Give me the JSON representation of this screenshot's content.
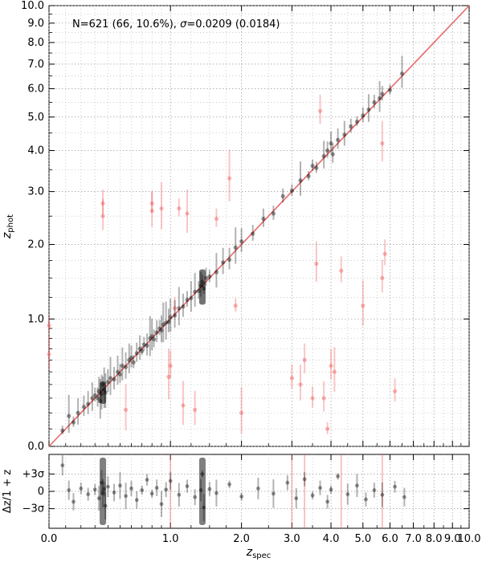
{
  "chart_data": [
    {
      "type": "scatter",
      "panel": "main",
      "title": "",
      "annotation": {
        "prefix": "N=621 (66, 10.6%), ",
        "sigma_symbol": "σ",
        "suffix": "=0.0209 (0.0184)"
      },
      "xlabel": {
        "base": "z",
        "sub": "spec"
      },
      "ylabel": {
        "base": "z",
        "sub": "phot"
      },
      "scale": "log(1+z)",
      "xlim": [
        0,
        10
      ],
      "ylim": [
        0,
        10
      ],
      "grid": true,
      "legend": "none",
      "x_tick_labels": [
        {
          "v": 0,
          "t": "0.0"
        },
        {
          "v": 1,
          "t": "1.0"
        },
        {
          "v": 2,
          "t": "2.0"
        },
        {
          "v": 3,
          "t": "3.0"
        },
        {
          "v": 4,
          "t": "4.0"
        },
        {
          "v": 5,
          "t": "5.0"
        },
        {
          "v": 6,
          "t": "6.0"
        },
        {
          "v": 7,
          "t": "7.0"
        },
        {
          "v": 8,
          "t": "8.0"
        },
        {
          "v": 9,
          "t": "9.0"
        },
        {
          "v": 10,
          "t": "10.0"
        }
      ],
      "y_tick_labels": [
        {
          "v": 0,
          "t": "0.0"
        },
        {
          "v": 1,
          "t": "1.0"
        },
        {
          "v": 2,
          "t": "2.0"
        },
        {
          "v": 3,
          "t": "3.0"
        },
        {
          "v": 4,
          "t": "4.0"
        },
        {
          "v": 5,
          "t": "5.0"
        },
        {
          "v": 6,
          "t": "6.0"
        },
        {
          "v": 7,
          "t": "7.0"
        },
        {
          "v": 8,
          "t": "8.0"
        },
        {
          "v": 9,
          "t": "9.0"
        },
        {
          "v": 10,
          "t": "10.0"
        }
      ],
      "minor_ticks": [
        0.1,
        0.2,
        0.3,
        0.4,
        0.5,
        0.6,
        0.7,
        0.8,
        0.9,
        1.25,
        1.5,
        1.75,
        2.5,
        3.5,
        4.5,
        5.5,
        6.5,
        7.5,
        8.5,
        9.5
      ],
      "one_to_one_line": {
        "color": "#e8696b"
      },
      "series": [
        {
          "role": "good",
          "color": "#000000",
          "points": [
            [
              0.08,
              0.09
            ],
            [
              0.12,
              0.18
            ],
            [
              0.15,
              0.14
            ],
            [
              0.18,
              0.2
            ],
            [
              0.22,
              0.24
            ],
            [
              0.25,
              0.26
            ],
            [
              0.28,
              0.3
            ],
            [
              0.3,
              0.32
            ],
            [
              0.32,
              0.3
            ],
            [
              0.33,
              0.35
            ],
            [
              0.34,
              0.28
            ],
            [
              0.35,
              0.33
            ],
            [
              0.36,
              0.4
            ],
            [
              0.37,
              0.36
            ],
            [
              0.38,
              0.34
            ],
            [
              0.4,
              0.42
            ],
            [
              0.42,
              0.45
            ],
            [
              0.45,
              0.44
            ],
            [
              0.48,
              0.5
            ],
            [
              0.5,
              0.48
            ],
            [
              0.52,
              0.55
            ],
            [
              0.55,
              0.54
            ],
            [
              0.58,
              0.6
            ],
            [
              0.6,
              0.62
            ],
            [
              0.62,
              0.58
            ],
            [
              0.65,
              0.66
            ],
            [
              0.68,
              0.7
            ],
            [
              0.7,
              0.68
            ],
            [
              0.72,
              0.74
            ],
            [
              0.75,
              0.73
            ],
            [
              0.78,
              0.8
            ],
            [
              0.8,
              0.82
            ],
            [
              0.82,
              0.79
            ],
            [
              0.85,
              0.86
            ],
            [
              0.88,
              0.9
            ],
            [
              0.9,
              0.88
            ],
            [
              0.92,
              0.94
            ],
            [
              0.95,
              0.96
            ],
            [
              0.98,
              0.97
            ],
            [
              1.0,
              1.02
            ],
            [
              1.05,
              1.04
            ],
            [
              1.1,
              1.12
            ],
            [
              1.15,
              1.14
            ],
            [
              1.2,
              1.22
            ],
            [
              1.25,
              1.24
            ],
            [
              1.3,
              1.32
            ],
            [
              1.35,
              1.33
            ],
            [
              1.38,
              1.4
            ],
            [
              1.4,
              1.45
            ],
            [
              1.42,
              1.36
            ],
            [
              1.45,
              1.5
            ],
            [
              1.5,
              1.52
            ],
            [
              1.6,
              1.58
            ],
            [
              1.7,
              1.72
            ],
            [
              1.8,
              1.76
            ],
            [
              1.9,
              1.95
            ],
            [
              2.0,
              2.05
            ],
            [
              2.2,
              2.18
            ],
            [
              2.4,
              2.45
            ],
            [
              2.6,
              2.55
            ],
            [
              2.8,
              2.9
            ],
            [
              3.0,
              3.02
            ],
            [
              3.2,
              3.25
            ],
            [
              3.4,
              3.35
            ],
            [
              3.5,
              3.6
            ],
            [
              3.6,
              3.55
            ],
            [
              3.8,
              3.85
            ],
            [
              3.9,
              4.0
            ],
            [
              4.0,
              4.2
            ],
            [
              4.05,
              3.9
            ],
            [
              4.2,
              4.3
            ],
            [
              4.4,
              4.45
            ],
            [
              4.6,
              4.7
            ],
            [
              4.8,
              4.85
            ],
            [
              5.0,
              5.05
            ],
            [
              5.2,
              5.25
            ],
            [
              5.4,
              5.5
            ],
            [
              5.6,
              5.65
            ],
            [
              5.7,
              5.8
            ],
            [
              6.0,
              5.95
            ],
            [
              6.5,
              6.6
            ]
          ]
        },
        {
          "role": "outliers",
          "color": "#f25d5d",
          "points": [
            [
              0.0,
              0.65
            ],
            [
              0.0,
              0.93
            ],
            [
              0.36,
              2.5
            ],
            [
              0.36,
              2.75
            ],
            [
              0.55,
              0.22
            ],
            [
              0.8,
              2.6
            ],
            [
              0.8,
              2.75
            ],
            [
              0.9,
              2.65
            ],
            [
              0.98,
              0.46
            ],
            [
              1.0,
              0.55
            ],
            [
              1.05,
              1.12
            ],
            [
              1.1,
              2.65
            ],
            [
              1.15,
              0.25
            ],
            [
              1.2,
              2.55
            ],
            [
              1.3,
              0.22
            ],
            [
              1.6,
              2.45
            ],
            [
              1.8,
              3.3
            ],
            [
              1.9,
              1.15
            ],
            [
              2.0,
              0.2
            ],
            [
              3.0,
              0.45
            ],
            [
              3.2,
              0.4
            ],
            [
              3.3,
              0.6
            ],
            [
              3.5,
              0.3
            ],
            [
              3.6,
              1.7
            ],
            [
              3.7,
              5.2
            ],
            [
              3.8,
              0.3
            ],
            [
              3.9,
              0.1
            ],
            [
              4.0,
              0.55
            ],
            [
              4.1,
              0.5
            ],
            [
              4.3,
              1.6
            ],
            [
              5.0,
              1.15
            ],
            [
              5.7,
              1.5
            ],
            [
              5.7,
              4.2
            ],
            [
              5.8,
              1.85
            ],
            [
              6.2,
              0.35
            ]
          ]
        }
      ]
    },
    {
      "type": "scatter",
      "panel": "residual",
      "title": "",
      "xlabel": {
        "base": "z",
        "sub": "spec"
      },
      "ylabel": "Δz/1 + z",
      "x_tick_labels": [
        {
          "v": 0,
          "t": "0.0"
        },
        {
          "v": 1,
          "t": "1.0"
        },
        {
          "v": 2,
          "t": "2.0"
        },
        {
          "v": 3,
          "t": "3.0"
        },
        {
          "v": 4,
          "t": "4.0"
        },
        {
          "v": 5,
          "t": "5.0"
        },
        {
          "v": 6,
          "t": "6.0"
        },
        {
          "v": 7,
          "t": "7.0"
        },
        {
          "v": 8,
          "t": "8.0"
        },
        {
          "v": 9,
          "t": "9.0"
        },
        {
          "v": 10,
          "t": "10.0"
        }
      ],
      "y_tick_labels": [
        {
          "v": 3,
          "t": "+3σ"
        },
        {
          "v": 0,
          "t": "0"
        },
        {
          "v": -3,
          "t": "−3σ"
        }
      ],
      "ylim_sigma": [
        -5,
        5
      ],
      "grid": true,
      "legend": "none",
      "series": [
        {
          "role": "residuals",
          "color": "#000000",
          "points": [
            [
              0.08,
              4.5
            ],
            [
              0.12,
              0.2
            ],
            [
              0.15,
              -1.8
            ],
            [
              0.2,
              0.5
            ],
            [
              0.25,
              -0.5
            ],
            [
              0.3,
              0.3
            ],
            [
              0.33,
              -1.2
            ],
            [
              0.35,
              1.5
            ],
            [
              0.36,
              -0.3
            ],
            [
              0.37,
              0.4
            ],
            [
              0.38,
              -2.5
            ],
            [
              0.4,
              0.8
            ],
            [
              0.45,
              -0.2
            ],
            [
              0.5,
              1.0
            ],
            [
              0.55,
              -0.8
            ],
            [
              0.6,
              0.5
            ],
            [
              0.65,
              -1.5
            ],
            [
              0.7,
              0.2
            ],
            [
              0.75,
              2.0
            ],
            [
              0.8,
              -0.4
            ],
            [
              0.85,
              0.6
            ],
            [
              0.9,
              -2.2
            ],
            [
              0.95,
              0.3
            ],
            [
              1.0,
              1.8
            ],
            [
              1.1,
              -0.6
            ],
            [
              1.2,
              0.9
            ],
            [
              1.3,
              -1.0
            ],
            [
              1.38,
              0.2
            ],
            [
              1.4,
              3.0
            ],
            [
              1.42,
              -2.8
            ],
            [
              1.5,
              0.4
            ],
            [
              1.6,
              -0.3
            ],
            [
              1.8,
              1.2
            ],
            [
              2.0,
              -0.9
            ],
            [
              2.3,
              0.5
            ],
            [
              2.6,
              -0.4
            ],
            [
              2.9,
              1.5
            ],
            [
              3.1,
              -1.2
            ],
            [
              3.3,
              2.1
            ],
            [
              3.5,
              -0.7
            ],
            [
              3.7,
              0.6
            ],
            [
              3.9,
              -1.8
            ],
            [
              4.0,
              0.3
            ],
            [
              4.2,
              2.6
            ],
            [
              4.5,
              -0.5
            ],
            [
              4.8,
              1.0
            ],
            [
              5.1,
              -1.4
            ],
            [
              5.4,
              0.2
            ],
            [
              5.7,
              -0.6
            ],
            [
              6.2,
              0.8
            ],
            [
              6.6,
              -1.0
            ]
          ]
        },
        {
          "role": "outlier-markers",
          "color": "#f25d5d",
          "points": [
            [
              1.0,
              0
            ],
            [
              3.0,
              0
            ],
            [
              3.3,
              0
            ],
            [
              4.3,
              0
            ],
            [
              5.7,
              0
            ]
          ]
        }
      ]
    }
  ]
}
